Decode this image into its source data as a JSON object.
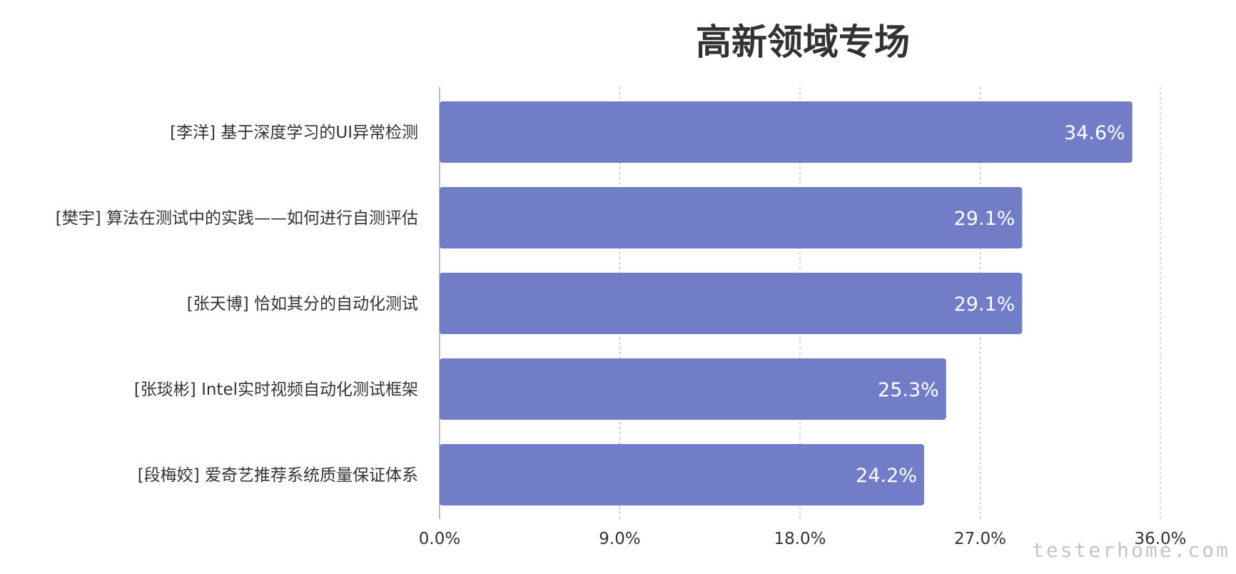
{
  "chart_data": {
    "type": "bar",
    "orientation": "horizontal",
    "title": "高新领域专场",
    "categories": [
      "[李洋] 基于深度学习的UI异常检测",
      "[樊宇] 算法在测试中的实践——如何进行自测评估",
      "[张天博] 恰如其分的自动化测试",
      "[张琰彬] Intel实时视频自动化测试框架",
      "[段梅姣] 爱奇艺推荐系统质量保证体系"
    ],
    "values": [
      34.6,
      29.1,
      29.1,
      25.3,
      24.2
    ],
    "data_labels": [
      "34.6%",
      "29.1%",
      "29.1%",
      "25.3%",
      "24.2%"
    ],
    "xlim": [
      0,
      36
    ],
    "x_ticks": [
      0,
      9,
      18,
      27,
      36
    ],
    "x_tick_labels": [
      "0.0%",
      "9.0%",
      "18.0%",
      "27.0%",
      "36.0%"
    ],
    "grid": "vertical-dashed",
    "bar_color": "#717dc6",
    "watermark": "testerhome.com"
  }
}
